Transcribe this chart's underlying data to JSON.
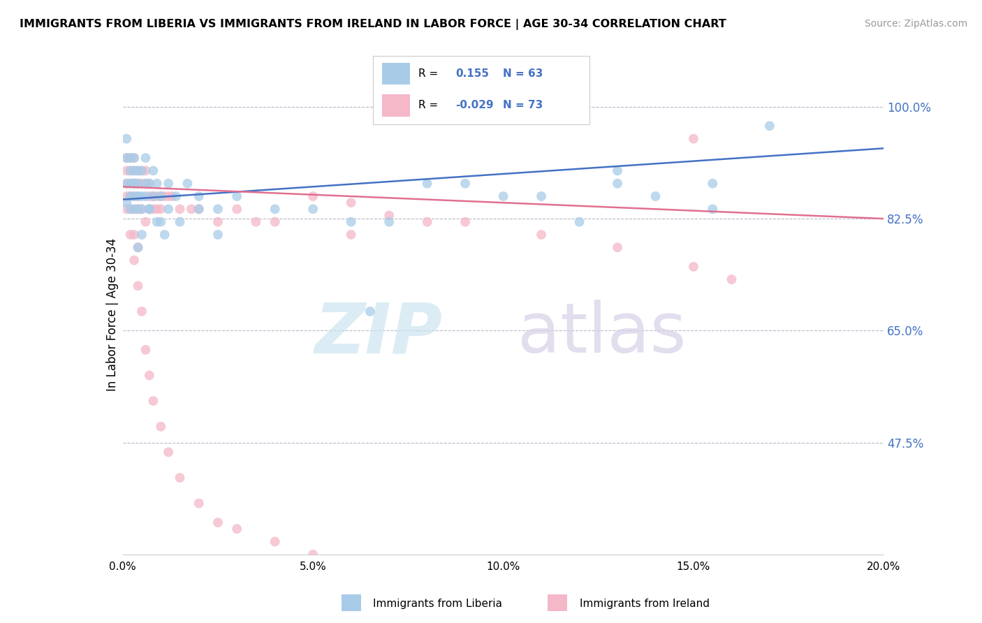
{
  "title": "IMMIGRANTS FROM LIBERIA VS IMMIGRANTS FROM IRELAND IN LABOR FORCE | AGE 30-34 CORRELATION CHART",
  "source": "Source: ZipAtlas.com",
  "ylabel": "In Labor Force | Age 30-34",
  "xlim": [
    0.0,
    0.2
  ],
  "ylim": [
    0.3,
    1.05
  ],
  "yticks": [
    0.475,
    0.65,
    0.825,
    1.0
  ],
  "ytick_labels": [
    "47.5%",
    "65.0%",
    "82.5%",
    "100.0%"
  ],
  "xticks": [
    0.0,
    0.05,
    0.1,
    0.15,
    0.2
  ],
  "xtick_labels": [
    "0.0%",
    "5.0%",
    "10.0%",
    "15.0%",
    "20.0%"
  ],
  "legend_R_liberia": "0.155",
  "legend_N_liberia": "63",
  "legend_R_ireland": "-0.029",
  "legend_N_ireland": "73",
  "liberia_color": "#a8cce8",
  "ireland_color": "#f4b8c8",
  "liberia_line_color": "#4472c4",
  "ireland_line_color": "#e07090",
  "liberia_line_x0": 0.0,
  "liberia_line_y0": 0.855,
  "liberia_line_x1": 0.2,
  "liberia_line_y1": 0.935,
  "ireland_line_x0": 0.0,
  "ireland_line_y0": 0.875,
  "ireland_line_x1": 0.2,
  "ireland_line_y1": 0.825,
  "liberia_x": [
    0.001,
    0.001,
    0.001,
    0.001,
    0.002,
    0.002,
    0.002,
    0.002,
    0.002,
    0.003,
    0.003,
    0.003,
    0.003,
    0.003,
    0.003,
    0.004,
    0.004,
    0.004,
    0.004,
    0.005,
    0.005,
    0.005,
    0.006,
    0.006,
    0.006,
    0.007,
    0.007,
    0.008,
    0.008,
    0.009,
    0.01,
    0.012,
    0.014,
    0.017,
    0.02,
    0.025,
    0.03,
    0.04,
    0.05,
    0.06,
    0.065,
    0.07,
    0.08,
    0.09,
    0.1,
    0.11,
    0.12,
    0.13,
    0.14,
    0.155,
    0.17,
    0.004,
    0.005,
    0.007,
    0.009,
    0.01,
    0.011,
    0.012,
    0.015,
    0.02,
    0.025,
    0.13,
    0.155
  ],
  "liberia_y": [
    0.92,
    0.88,
    0.85,
    0.95,
    0.9,
    0.86,
    0.88,
    0.84,
    0.92,
    0.88,
    0.86,
    0.9,
    0.84,
    0.92,
    0.88,
    0.86,
    0.9,
    0.84,
    0.88,
    0.86,
    0.9,
    0.84,
    0.88,
    0.86,
    0.92,
    0.88,
    0.84,
    0.86,
    0.9,
    0.88,
    0.86,
    0.88,
    0.86,
    0.88,
    0.86,
    0.84,
    0.86,
    0.84,
    0.84,
    0.82,
    0.68,
    0.82,
    0.88,
    0.88,
    0.86,
    0.86,
    0.82,
    0.88,
    0.86,
    0.84,
    0.97,
    0.78,
    0.8,
    0.84,
    0.82,
    0.82,
    0.8,
    0.84,
    0.82,
    0.84,
    0.8,
    0.9,
    0.88
  ],
  "ireland_x": [
    0.001,
    0.001,
    0.001,
    0.001,
    0.001,
    0.002,
    0.002,
    0.002,
    0.002,
    0.002,
    0.002,
    0.003,
    0.003,
    0.003,
    0.003,
    0.003,
    0.003,
    0.003,
    0.004,
    0.004,
    0.004,
    0.004,
    0.004,
    0.005,
    0.005,
    0.005,
    0.006,
    0.006,
    0.006,
    0.007,
    0.007,
    0.007,
    0.008,
    0.008,
    0.009,
    0.009,
    0.01,
    0.01,
    0.011,
    0.012,
    0.013,
    0.015,
    0.018,
    0.02,
    0.025,
    0.03,
    0.035,
    0.04,
    0.05,
    0.06,
    0.08,
    0.15,
    0.003,
    0.004,
    0.005,
    0.006,
    0.007,
    0.008,
    0.01,
    0.012,
    0.015,
    0.02,
    0.025,
    0.03,
    0.04,
    0.05,
    0.06,
    0.07,
    0.09,
    0.11,
    0.13,
    0.15,
    0.16
  ],
  "ireland_y": [
    0.92,
    0.88,
    0.86,
    0.84,
    0.9,
    0.9,
    0.88,
    0.86,
    0.84,
    0.92,
    0.8,
    0.9,
    0.88,
    0.86,
    0.84,
    0.92,
    0.8,
    0.88,
    0.9,
    0.88,
    0.86,
    0.84,
    0.78,
    0.9,
    0.88,
    0.84,
    0.9,
    0.88,
    0.82,
    0.88,
    0.86,
    0.84,
    0.86,
    0.84,
    0.86,
    0.84,
    0.86,
    0.84,
    0.86,
    0.86,
    0.86,
    0.84,
    0.84,
    0.84,
    0.82,
    0.84,
    0.82,
    0.82,
    0.86,
    0.8,
    0.82,
    0.95,
    0.76,
    0.72,
    0.68,
    0.62,
    0.58,
    0.54,
    0.5,
    0.46,
    0.42,
    0.38,
    0.35,
    0.34,
    0.32,
    0.3,
    0.85,
    0.83,
    0.82,
    0.8,
    0.78,
    0.75,
    0.73
  ]
}
